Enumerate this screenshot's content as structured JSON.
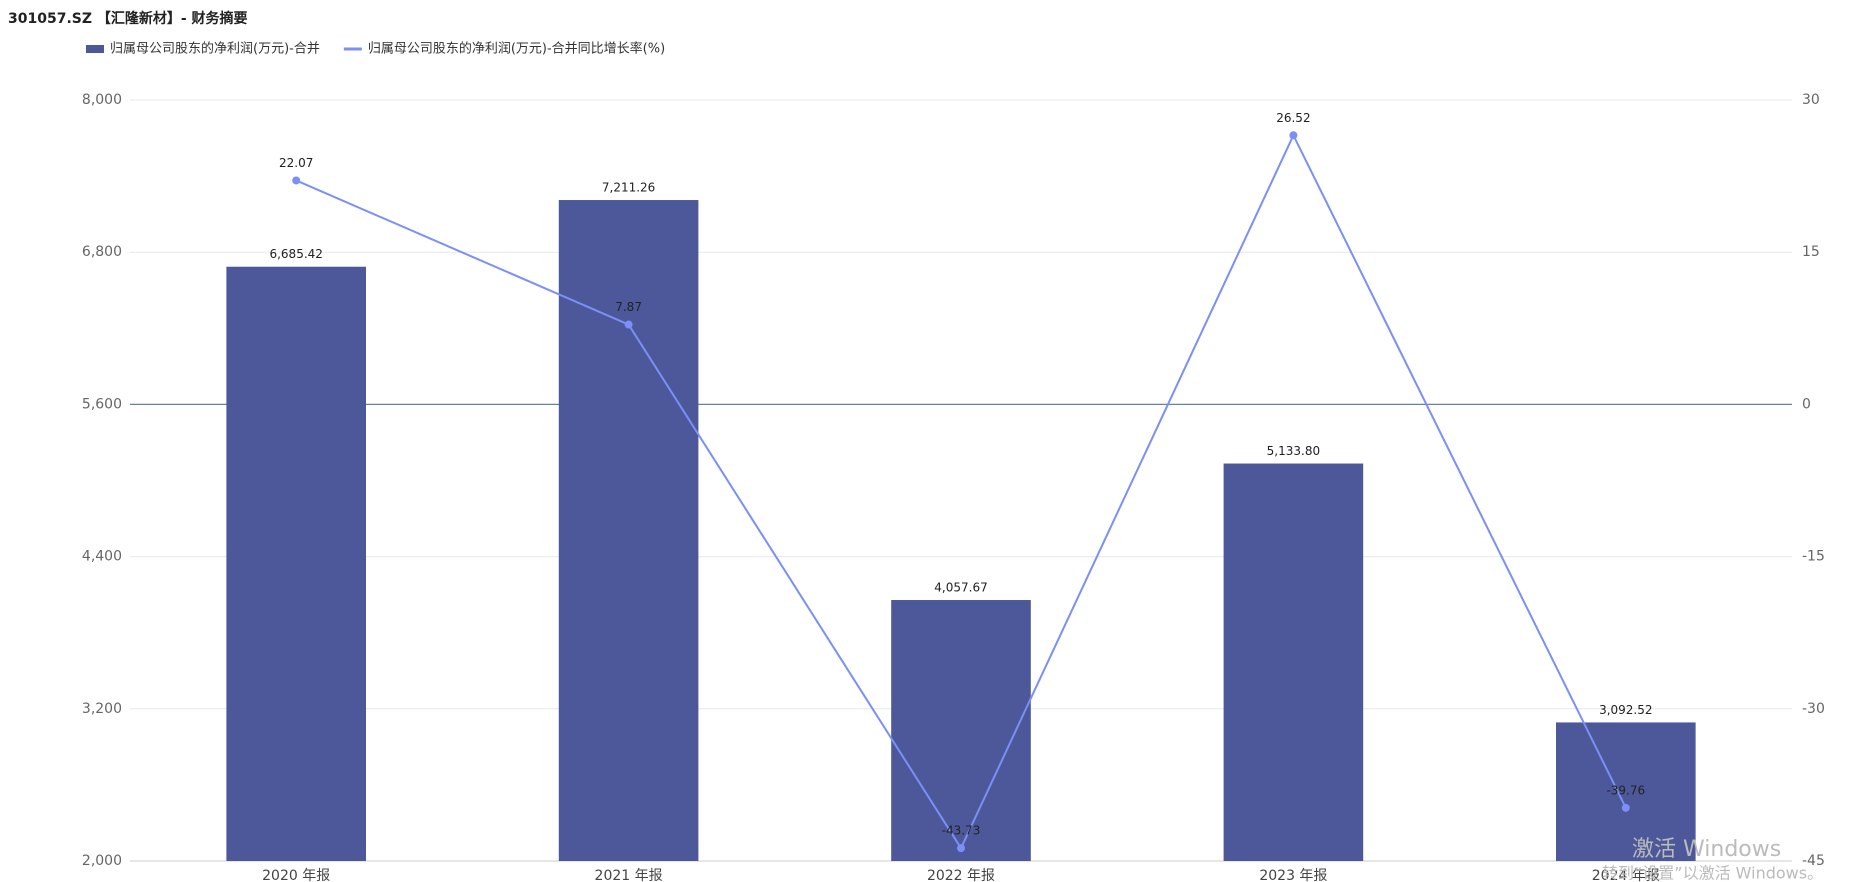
{
  "chart_data": {
    "type": "bar_line",
    "title": "301057.SZ 【汇隆新材】- 财务摘要",
    "categories": [
      "2020 年报",
      "2021 年报",
      "2022 年报",
      "2023 年报",
      "2024 年报"
    ],
    "series": [
      {
        "name": "归属母公司股东的净利润(万元)-合并",
        "type": "bar",
        "color": "#4c5899",
        "values": [
          6685.42,
          7211.26,
          4057.67,
          5133.8,
          3092.52
        ],
        "value_labels": [
          "6,685.42",
          "7,211.26",
          "4,057.67",
          "5,133.80",
          "3,092.52"
        ]
      },
      {
        "name": "归属母公司股东的净利润(万元)-合并同比增长率(%)",
        "type": "line",
        "axis": "y2",
        "color": "#7b8ff7",
        "values": [
          22.07,
          7.87,
          -43.73,
          26.52,
          -39.76
        ]
      }
    ],
    "ylim": [
      2000,
      8000
    ],
    "yticks": [
      {
        "value": 2000,
        "label": "2,000"
      },
      {
        "value": 3200,
        "label": "3,200"
      },
      {
        "value": 4400,
        "label": "4,400"
      },
      {
        "value": 5600,
        "label": "5,600"
      },
      {
        "value": 6800,
        "label": "6,800"
      },
      {
        "value": 8000,
        "label": "8,000"
      }
    ],
    "y2lim": [
      -45,
      30
    ],
    "y2ticks": [
      -45,
      -30,
      -15,
      0,
      15,
      30
    ],
    "grid": true,
    "legend": "top-left",
    "watermark": [
      "激活 Windows",
      "转到“设置”以激活 Windows。"
    ]
  }
}
